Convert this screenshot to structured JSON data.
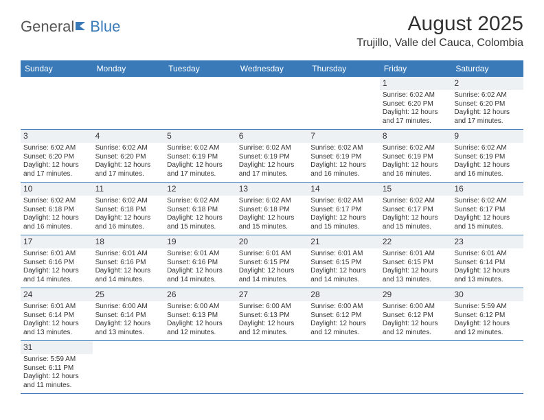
{
  "logo": {
    "part1": "General",
    "part2": "Blue"
  },
  "title": "August 2025",
  "location": "Trujillo, Valle del Cauca, Colombia",
  "colors": {
    "header_bg": "#3a7ab8",
    "header_fg": "#ffffff",
    "shade_bg": "#eef1f4",
    "border": "#3a7ab8",
    "text": "#333333"
  },
  "day_names": [
    "Sunday",
    "Monday",
    "Tuesday",
    "Wednesday",
    "Thursday",
    "Friday",
    "Saturday"
  ],
  "weeks": [
    [
      {
        "blank": true
      },
      {
        "blank": true
      },
      {
        "blank": true
      },
      {
        "blank": true
      },
      {
        "blank": true
      },
      {
        "day": "1",
        "sunrise": "Sunrise: 6:02 AM",
        "sunset": "Sunset: 6:20 PM",
        "d1": "Daylight: 12 hours",
        "d2": "and 17 minutes."
      },
      {
        "day": "2",
        "sunrise": "Sunrise: 6:02 AM",
        "sunset": "Sunset: 6:20 PM",
        "d1": "Daylight: 12 hours",
        "d2": "and 17 minutes."
      }
    ],
    [
      {
        "day": "3",
        "sunrise": "Sunrise: 6:02 AM",
        "sunset": "Sunset: 6:20 PM",
        "d1": "Daylight: 12 hours",
        "d2": "and 17 minutes."
      },
      {
        "day": "4",
        "sunrise": "Sunrise: 6:02 AM",
        "sunset": "Sunset: 6:20 PM",
        "d1": "Daylight: 12 hours",
        "d2": "and 17 minutes."
      },
      {
        "day": "5",
        "sunrise": "Sunrise: 6:02 AM",
        "sunset": "Sunset: 6:19 PM",
        "d1": "Daylight: 12 hours",
        "d2": "and 17 minutes."
      },
      {
        "day": "6",
        "sunrise": "Sunrise: 6:02 AM",
        "sunset": "Sunset: 6:19 PM",
        "d1": "Daylight: 12 hours",
        "d2": "and 17 minutes."
      },
      {
        "day": "7",
        "sunrise": "Sunrise: 6:02 AM",
        "sunset": "Sunset: 6:19 PM",
        "d1": "Daylight: 12 hours",
        "d2": "and 16 minutes."
      },
      {
        "day": "8",
        "sunrise": "Sunrise: 6:02 AM",
        "sunset": "Sunset: 6:19 PM",
        "d1": "Daylight: 12 hours",
        "d2": "and 16 minutes."
      },
      {
        "day": "9",
        "sunrise": "Sunrise: 6:02 AM",
        "sunset": "Sunset: 6:19 PM",
        "d1": "Daylight: 12 hours",
        "d2": "and 16 minutes."
      }
    ],
    [
      {
        "day": "10",
        "sunrise": "Sunrise: 6:02 AM",
        "sunset": "Sunset: 6:18 PM",
        "d1": "Daylight: 12 hours",
        "d2": "and 16 minutes."
      },
      {
        "day": "11",
        "sunrise": "Sunrise: 6:02 AM",
        "sunset": "Sunset: 6:18 PM",
        "d1": "Daylight: 12 hours",
        "d2": "and 16 minutes."
      },
      {
        "day": "12",
        "sunrise": "Sunrise: 6:02 AM",
        "sunset": "Sunset: 6:18 PM",
        "d1": "Daylight: 12 hours",
        "d2": "and 15 minutes."
      },
      {
        "day": "13",
        "sunrise": "Sunrise: 6:02 AM",
        "sunset": "Sunset: 6:18 PM",
        "d1": "Daylight: 12 hours",
        "d2": "and 15 minutes."
      },
      {
        "day": "14",
        "sunrise": "Sunrise: 6:02 AM",
        "sunset": "Sunset: 6:17 PM",
        "d1": "Daylight: 12 hours",
        "d2": "and 15 minutes."
      },
      {
        "day": "15",
        "sunrise": "Sunrise: 6:02 AM",
        "sunset": "Sunset: 6:17 PM",
        "d1": "Daylight: 12 hours",
        "d2": "and 15 minutes."
      },
      {
        "day": "16",
        "sunrise": "Sunrise: 6:02 AM",
        "sunset": "Sunset: 6:17 PM",
        "d1": "Daylight: 12 hours",
        "d2": "and 15 minutes."
      }
    ],
    [
      {
        "day": "17",
        "sunrise": "Sunrise: 6:01 AM",
        "sunset": "Sunset: 6:16 PM",
        "d1": "Daylight: 12 hours",
        "d2": "and 14 minutes."
      },
      {
        "day": "18",
        "sunrise": "Sunrise: 6:01 AM",
        "sunset": "Sunset: 6:16 PM",
        "d1": "Daylight: 12 hours",
        "d2": "and 14 minutes."
      },
      {
        "day": "19",
        "sunrise": "Sunrise: 6:01 AM",
        "sunset": "Sunset: 6:16 PM",
        "d1": "Daylight: 12 hours",
        "d2": "and 14 minutes."
      },
      {
        "day": "20",
        "sunrise": "Sunrise: 6:01 AM",
        "sunset": "Sunset: 6:15 PM",
        "d1": "Daylight: 12 hours",
        "d2": "and 14 minutes."
      },
      {
        "day": "21",
        "sunrise": "Sunrise: 6:01 AM",
        "sunset": "Sunset: 6:15 PM",
        "d1": "Daylight: 12 hours",
        "d2": "and 14 minutes."
      },
      {
        "day": "22",
        "sunrise": "Sunrise: 6:01 AM",
        "sunset": "Sunset: 6:15 PM",
        "d1": "Daylight: 12 hours",
        "d2": "and 13 minutes."
      },
      {
        "day": "23",
        "sunrise": "Sunrise: 6:01 AM",
        "sunset": "Sunset: 6:14 PM",
        "d1": "Daylight: 12 hours",
        "d2": "and 13 minutes."
      }
    ],
    [
      {
        "day": "24",
        "sunrise": "Sunrise: 6:01 AM",
        "sunset": "Sunset: 6:14 PM",
        "d1": "Daylight: 12 hours",
        "d2": "and 13 minutes."
      },
      {
        "day": "25",
        "sunrise": "Sunrise: 6:00 AM",
        "sunset": "Sunset: 6:14 PM",
        "d1": "Daylight: 12 hours",
        "d2": "and 13 minutes."
      },
      {
        "day": "26",
        "sunrise": "Sunrise: 6:00 AM",
        "sunset": "Sunset: 6:13 PM",
        "d1": "Daylight: 12 hours",
        "d2": "and 12 minutes."
      },
      {
        "day": "27",
        "sunrise": "Sunrise: 6:00 AM",
        "sunset": "Sunset: 6:13 PM",
        "d1": "Daylight: 12 hours",
        "d2": "and 12 minutes."
      },
      {
        "day": "28",
        "sunrise": "Sunrise: 6:00 AM",
        "sunset": "Sunset: 6:12 PM",
        "d1": "Daylight: 12 hours",
        "d2": "and 12 minutes."
      },
      {
        "day": "29",
        "sunrise": "Sunrise: 6:00 AM",
        "sunset": "Sunset: 6:12 PM",
        "d1": "Daylight: 12 hours",
        "d2": "and 12 minutes."
      },
      {
        "day": "30",
        "sunrise": "Sunrise: 5:59 AM",
        "sunset": "Sunset: 6:12 PM",
        "d1": "Daylight: 12 hours",
        "d2": "and 12 minutes."
      }
    ],
    [
      {
        "day": "31",
        "sunrise": "Sunrise: 5:59 AM",
        "sunset": "Sunset: 6:11 PM",
        "d1": "Daylight: 12 hours",
        "d2": "and 11 minutes."
      },
      {
        "blank": true
      },
      {
        "blank": true
      },
      {
        "blank": true
      },
      {
        "blank": true
      },
      {
        "blank": true
      },
      {
        "blank": true
      }
    ]
  ]
}
